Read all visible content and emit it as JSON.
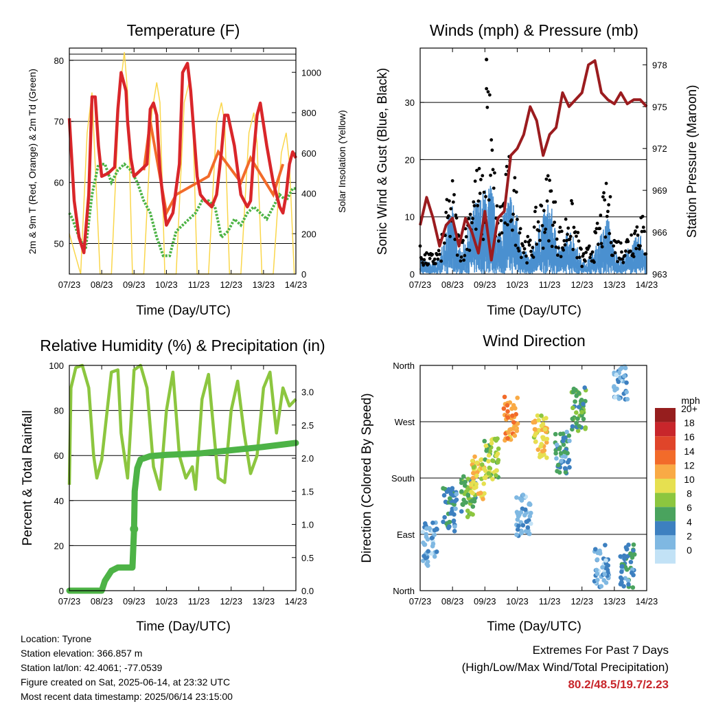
{
  "chart_data": [
    {
      "type": "line",
      "title": "Temperature (F)",
      "xlabel": "Time (Day/UTC)",
      "ylabel": "2m & 9m T (Red, Orange) & 2m Td (Green)",
      "y2label": "Solar Insolation (Yellow)",
      "x_ticks": [
        "07/23",
        "08/23",
        "09/23",
        "10/23",
        "11/23",
        "12/23",
        "13/23",
        "14/23"
      ],
      "y_ticks": [
        50,
        60,
        70,
        80
      ],
      "y2_ticks": [
        0,
        200,
        400,
        600,
        800,
        1000
      ],
      "ylim": [
        45,
        82
      ],
      "y2lim": [
        0,
        1120
      ],
      "xlim": [
        0,
        7
      ],
      "grid": true,
      "series": [
        {
          "color": "#d9262a",
          "x": [
            0,
            0.05,
            0.15,
            0.3,
            0.45,
            0.6,
            0.7,
            0.8,
            0.9,
            1.0,
            1.2,
            1.4,
            1.5,
            1.6,
            1.75,
            1.8,
            1.9,
            2.0,
            2.2,
            2.4,
            2.5,
            2.6,
            2.7,
            2.8,
            2.9,
            3.0,
            3.2,
            3.4,
            3.5,
            3.65,
            3.75,
            3.85,
            3.95,
            4.05,
            4.2,
            4.4,
            4.55,
            4.7,
            4.8,
            4.9,
            5.1,
            5.3,
            5.5,
            5.6,
            5.7,
            5.8,
            5.9,
            6.1,
            6.3,
            6.5,
            6.6,
            6.7,
            6.8,
            6.9,
            7.0
          ],
          "y": [
            70.5,
            66,
            57,
            51,
            48.5,
            58,
            74,
            74,
            66,
            61,
            61.5,
            62.5,
            72,
            78,
            75,
            70,
            64,
            61,
            62,
            63,
            72,
            73,
            71,
            62,
            57,
            53,
            55,
            63,
            78,
            79.5,
            75,
            68,
            61,
            58,
            57,
            56,
            58,
            65,
            71,
            71,
            66,
            58,
            56,
            57,
            65,
            71,
            73,
            66,
            60,
            56,
            55,
            58,
            63,
            65,
            64
          ]
        },
        {
          "color": "#f26b2a",
          "x": [
            2.3,
            2.5,
            2.8,
            3.0,
            3.3,
            4.3,
            4.6,
            5.3,
            5.6,
            6.3,
            6.6
          ],
          "y": [
            62,
            70,
            61,
            55,
            58,
            61,
            65,
            60,
            64,
            58,
            63
          ]
        },
        {
          "color": "#4db346",
          "x": [
            0,
            0.1,
            0.3,
            0.5,
            0.7,
            0.9,
            1.1,
            1.3,
            1.5,
            1.7,
            1.9,
            2.1,
            2.3,
            2.5,
            2.7,
            2.9,
            3.1,
            3.3,
            3.5,
            3.7,
            3.9,
            4.1,
            4.3,
            4.5,
            4.7,
            4.9,
            5.1,
            5.3,
            5.5,
            5.7,
            5.9,
            6.1,
            6.3,
            6.5,
            6.7,
            6.9,
            7.0
          ],
          "y": [
            55,
            54,
            51,
            49,
            58,
            63,
            63,
            60,
            62,
            63,
            62,
            60,
            57,
            55,
            51,
            48,
            48,
            52,
            53,
            54,
            55,
            57,
            57,
            56,
            51,
            52,
            54,
            53,
            55,
            56,
            55,
            54,
            56,
            58,
            57,
            59,
            59
          ]
        },
        {
          "color": "#fad64a",
          "x": [
            0,
            0.35,
            0.55,
            0.7,
            0.95,
            1.3,
            1.55,
            1.7,
            1.8,
            1.95,
            2.3,
            2.55,
            2.7,
            2.8,
            2.95,
            3.3,
            3.55,
            3.7,
            3.8,
            3.95,
            4.3,
            4.55,
            4.7,
            4.8,
            4.95,
            5.3,
            5.55,
            5.7,
            5.8,
            5.95,
            6.3,
            6.55,
            6.7,
            6.8,
            6.95
          ],
          "y": [
            200,
            0,
            700,
            900,
            0,
            0,
            900,
            1100,
            900,
            0,
            0,
            800,
            950,
            850,
            0,
            0,
            850,
            950,
            850,
            0,
            0,
            750,
            850,
            750,
            0,
            0,
            700,
            800,
            650,
            0,
            0,
            600,
            700,
            550,
            0
          ]
        }
      ]
    },
    {
      "type": "line",
      "title": "Winds (mph) & Pressure (mb)",
      "xlabel": "Time (Day/UTC)",
      "ylabel": "Sonic Wind & Gust (Blue, Black)",
      "y2label": "Station Pressure (Maroon)",
      "x_ticks": [
        "07/23",
        "08/23",
        "09/23",
        "10/23",
        "11/23",
        "12/23",
        "13/23",
        "14/23"
      ],
      "y_ticks": [
        0,
        10,
        20,
        30
      ],
      "y2_ticks": [
        963,
        966,
        969,
        972,
        975,
        978
      ],
      "ylim": [
        0,
        39.5
      ],
      "y2lim": [
        963,
        979.2
      ],
      "xlim": [
        0,
        7
      ],
      "grid": true,
      "series": [
        {
          "color": "#9b1c1f",
          "name": "pressure",
          "x": [
            0,
            0.2,
            0.4,
            0.6,
            0.8,
            1.0,
            1.2,
            1.4,
            1.6,
            1.8,
            2.0,
            2.2,
            2.4,
            2.6,
            2.8,
            3.0,
            3.2,
            3.4,
            3.6,
            3.8,
            4.0,
            4.2,
            4.4,
            4.6,
            4.8,
            5.0,
            5.2,
            5.4,
            5.6,
            5.8,
            6.0,
            6.2,
            6.4,
            6.6,
            6.8,
            7.0
          ],
          "y": [
            966.5,
            968.5,
            967,
            965,
            966.5,
            967,
            965,
            967,
            966,
            964.5,
            967.5,
            964,
            967,
            967.5,
            971.5,
            972,
            973,
            975,
            974,
            971.5,
            973,
            973.5,
            976,
            975,
            975.5,
            976,
            978,
            978.3,
            976,
            975.5,
            975.2,
            976,
            975.2,
            975.5,
            975.5,
            975
          ]
        },
        {
          "color": "#000000",
          "name": "gust",
          "x": [
            0,
            0.2,
            0.4,
            0.6,
            0.8,
            1.0,
            1.2,
            1.4,
            1.6,
            1.8,
            2.0,
            2.05,
            2.2,
            2.4,
            2.6,
            2.8,
            3.0,
            3.2,
            3.4,
            3.6,
            3.8,
            4.0,
            4.2,
            4.4,
            4.6,
            4.8,
            5.0,
            5.2,
            5.4,
            5.6,
            5.8,
            6.0,
            6.2,
            6.4,
            6.6,
            6.8,
            7.0
          ],
          "y": [
            4,
            3,
            3,
            4,
            10,
            14,
            6,
            7,
            14,
            16,
            13,
            37.5,
            22,
            9,
            14,
            18,
            12,
            6,
            5,
            10,
            12,
            16,
            10,
            6,
            12,
            8,
            3,
            4,
            6,
            10,
            14,
            6,
            5,
            6,
            8,
            10,
            6
          ]
        },
        {
          "color": "#4a90d0",
          "name": "wind",
          "x": [
            0,
            0.2,
            0.4,
            0.6,
            0.8,
            1.0,
            1.2,
            1.4,
            1.6,
            1.8,
            2.0,
            2.2,
            2.4,
            2.6,
            2.8,
            3.0,
            3.2,
            3.4,
            3.6,
            3.8,
            4.0,
            4.2,
            4.4,
            4.6,
            4.8,
            5.0,
            5.2,
            5.4,
            5.6,
            5.8,
            6.0,
            6.2,
            6.4,
            6.6,
            6.8,
            7.0
          ],
          "y": [
            2,
            1.5,
            1.5,
            2,
            6,
            8,
            3,
            4,
            8,
            9,
            10,
            11,
            5,
            8,
            10,
            7,
            3,
            2,
            5,
            7,
            9,
            5,
            3,
            6,
            4,
            1.5,
            2,
            3,
            5,
            7,
            3,
            2,
            3,
            4,
            5,
            3
          ]
        }
      ]
    },
    {
      "type": "line",
      "title": "Relative Humidity (%) & Precipitation (in)",
      "xlabel": "Time (Day/UTC)",
      "ylabel": "Percent & Total Rainfall",
      "x_ticks": [
        "07/23",
        "08/23",
        "09/23",
        "10/23",
        "11/23",
        "12/23",
        "13/23",
        "14/23"
      ],
      "y_ticks": [
        0,
        20,
        40,
        60,
        80,
        100
      ],
      "y2_ticks": [
        0.0,
        0.5,
        1.0,
        1.5,
        2.0,
        2.5,
        3.0
      ],
      "ylim": [
        0,
        100
      ],
      "y2lim": [
        0,
        3.4
      ],
      "xlim": [
        0,
        7
      ],
      "grid": true,
      "series": [
        {
          "color": "#8cc63f",
          "name": "rh",
          "x": [
            0,
            0.05,
            0.2,
            0.4,
            0.6,
            0.75,
            0.85,
            1.0,
            1.3,
            1.5,
            1.6,
            1.8,
            2.0,
            2.2,
            2.4,
            2.6,
            2.8,
            3.0,
            3.2,
            3.4,
            3.6,
            3.8,
            3.9,
            4.1,
            4.3,
            4.5,
            4.6,
            4.8,
            5.0,
            5.2,
            5.4,
            5.6,
            5.8,
            6.0,
            6.2,
            6.4,
            6.6,
            6.8,
            7.0
          ],
          "y": [
            47,
            90,
            99,
            100,
            90,
            60,
            50,
            58,
            97,
            98,
            70,
            50,
            98,
            100,
            90,
            55,
            45,
            80,
            97,
            60,
            50,
            55,
            45,
            85,
            96,
            65,
            50,
            48,
            80,
            93,
            70,
            52,
            60,
            90,
            97,
            70,
            90,
            82,
            85
          ]
        },
        {
          "color": "#4db346",
          "name": "precip",
          "x": [
            0,
            0.5,
            1.0,
            1.1,
            1.3,
            1.5,
            1.95,
            2.0,
            2.02,
            2.1,
            2.2,
            2.5,
            3.0,
            4.0,
            5.0,
            6.0,
            7.0
          ],
          "y": [
            0,
            0,
            0,
            0.15,
            0.3,
            0.35,
            0.35,
            0.93,
            1.5,
            1.85,
            1.98,
            2.03,
            2.05,
            2.07,
            2.12,
            2.17,
            2.23
          ]
        }
      ]
    },
    {
      "type": "scatter",
      "title": "Wind Direction",
      "xlabel": "Time (Day/UTC)",
      "ylabel": "Direction (Colored By Speed)",
      "x_ticks": [
        "07/23",
        "08/23",
        "09/23",
        "10/23",
        "11/23",
        "12/23",
        "13/23",
        "14/23"
      ],
      "y_ticks": [
        "North",
        "East",
        "South",
        "West",
        "North"
      ],
      "ylim": [
        0,
        360
      ],
      "xlim": [
        0,
        7
      ],
      "grid": true,
      "legend_title": "mph",
      "legend_placement": "right",
      "legend": [
        {
          "label": "20+",
          "color": "#961e1e"
        },
        {
          "label": "18",
          "color": "#c8262b"
        },
        {
          "label": "16",
          "color": "#e0452a"
        },
        {
          "label": "14",
          "color": "#f26b2a"
        },
        {
          "label": "12",
          "color": "#f9aa45"
        },
        {
          "label": "10",
          "color": "#e6e050"
        },
        {
          "label": "8",
          "color": "#8cc63f"
        },
        {
          "label": "6",
          "color": "#4aa35e"
        },
        {
          "label": "4",
          "color": "#3d80c0"
        },
        {
          "label": "2",
          "color": "#7fb8e2"
        },
        {
          "label": "0",
          "color": "#c2e2f6"
        }
      ],
      "clusters": [
        {
          "x": 0.3,
          "y": 75,
          "speed": 2
        },
        {
          "x": 0.9,
          "y": 130,
          "speed": 4
        },
        {
          "x": 1.5,
          "y": 150,
          "speed": 6
        },
        {
          "x": 1.8,
          "y": 180,
          "speed": 10
        },
        {
          "x": 2.2,
          "y": 210,
          "speed": 8
        },
        {
          "x": 2.8,
          "y": 275,
          "speed": 12
        },
        {
          "x": 3.7,
          "y": 245,
          "speed": 10
        },
        {
          "x": 3.2,
          "y": 120,
          "speed": 2
        },
        {
          "x": 4.4,
          "y": 220,
          "speed": 4
        },
        {
          "x": 4.9,
          "y": 290,
          "speed": 6
        },
        {
          "x": 5.6,
          "y": 40,
          "speed": 2
        },
        {
          "x": 6.4,
          "y": 40,
          "speed": 4
        },
        {
          "x": 6.2,
          "y": 340,
          "speed": 2
        }
      ]
    }
  ],
  "info": {
    "location": "Location: Tyrone",
    "elevation": "Station elevation: 366.857 m",
    "latlon": "Station lat/lon: 42.4061; -77.0539",
    "created": "Figure created on Sat, 2025-06-14, at 23:32 UTC",
    "recent": "Most recent data timestamp: 2025/06/14 23:15:00"
  },
  "extremes": {
    "title": "Extremes For Past 7 Days",
    "subtitle": "(High/Low/Max Wind/Total Precipitation)",
    "values": "80.2/48.5/19.7/2.23"
  }
}
